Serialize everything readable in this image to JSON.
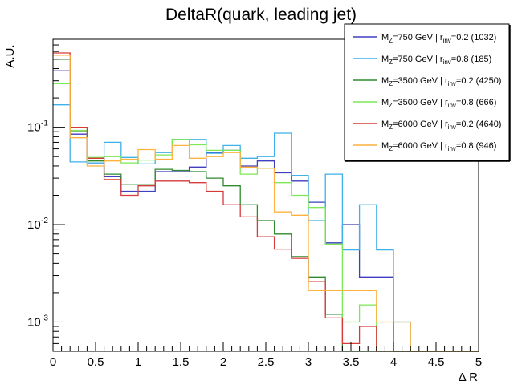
{
  "chart_data": {
    "type": "line",
    "title": "DeltaR(quark, leading jet)",
    "xlabel": "Δ R",
    "ylabel": "A.U.",
    "xlim": [
      0,
      5
    ],
    "ylim": [
      0.0005,
      0.8
    ],
    "yscale": "log",
    "grid": false,
    "legend_position": "top-right",
    "x_ticks": [
      "0",
      "0.5",
      "1",
      "1.5",
      "2",
      "2.5",
      "3",
      "3.5",
      "4",
      "4.5",
      "5"
    ],
    "y_ticks": [
      {
        "base": "10",
        "exp": "-1"
      },
      {
        "base": "10",
        "exp": "-2"
      },
      {
        "base": "10",
        "exp": "-3"
      }
    ],
    "bin_edges": [
      0,
      0.2,
      0.4,
      0.6,
      0.8,
      1.0,
      1.2,
      1.4,
      1.6,
      1.8,
      2.0,
      2.2,
      2.4,
      2.6,
      2.8,
      3.0,
      3.2,
      3.4,
      3.6,
      3.8,
      4.0,
      4.2,
      4.4,
      4.6,
      4.8,
      5.0
    ],
    "series": [
      {
        "label": {
          "pre": "M",
          "sub1": "Z",
          "mid": "=750 GeV | r",
          "sub2": "inv",
          "post": "=0.2 (1032)"
        },
        "color": "#3f3fbf",
        "values": [
          0.38,
          0.085,
          0.042,
          0.031,
          0.022,
          0.022,
          0.035,
          0.035,
          0.039,
          0.055,
          0.058,
          0.04,
          0.045,
          0.034,
          0.028,
          0.017,
          0.0065,
          0.01,
          0.0029,
          0.0029,
          0,
          0,
          0,
          0,
          0
        ]
      },
      {
        "label": {
          "pre": "M",
          "sub1": "Z",
          "mid": "=750 GeV | r",
          "sub2": "inv",
          "post": "=0.8 (185)"
        },
        "color": "#3fb0e8",
        "values": [
          0.17,
          0.044,
          0.043,
          0.07,
          0.049,
          0.042,
          0.055,
          0.075,
          0.075,
          0.054,
          0.065,
          0.048,
          0.05,
          0.087,
          0.032,
          0.011,
          0.033,
          0.0055,
          0.016,
          0.0055,
          0.001,
          0,
          0,
          0,
          0
        ]
      },
      {
        "label": {
          "pre": "M",
          "sub1": "Z",
          "mid": "=3500 GeV | r",
          "sub2": "inv",
          "post": "=0.2 (4250)"
        },
        "color": "#2d8a2d",
        "values": [
          0.5,
          0.09,
          0.045,
          0.033,
          0.026,
          0.026,
          0.037,
          0.036,
          0.035,
          0.03,
          0.025,
          0.016,
          0.011,
          0.008,
          0.0047,
          0.0029,
          0.0012,
          0.0005,
          0.0005,
          0,
          0,
          0,
          0,
          0,
          0
        ]
      },
      {
        "label": {
          "pre": "M",
          "sub1": "Z",
          "mid": "=3500 GeV | r",
          "sub2": "inv",
          "post": "=0.8 (666)"
        },
        "color": "#7be855",
        "values": [
          0.28,
          0.093,
          0.049,
          0.05,
          0.043,
          0.046,
          0.052,
          0.075,
          0.066,
          0.058,
          0.058,
          0.033,
          0.038,
          0.027,
          0.02,
          0.015,
          0.0063,
          0.001,
          0.0015,
          0.0005,
          0,
          0,
          0,
          0,
          0
        ]
      },
      {
        "label": {
          "pre": "M",
          "sub1": "Z",
          "mid": "=6000 GeV | r",
          "sub2": "inv",
          "post": "=0.2 (4640)"
        },
        "color": "#d63a3a",
        "values": [
          0.58,
          0.1,
          0.048,
          0.029,
          0.02,
          0.025,
          0.028,
          0.028,
          0.027,
          0.022,
          0.016,
          0.012,
          0.0075,
          0.0056,
          0.0045,
          0.0026,
          0.0011,
          0.0006,
          0.0009,
          0,
          0,
          0,
          0,
          0,
          0
        ]
      },
      {
        "label": {
          "pre": "M",
          "sub1": "Z",
          "mid": "=6000 GeV | r",
          "sub2": "inv",
          "post": "=0.8 (946)"
        },
        "color": "#ffb23f",
        "values": [
          0.55,
          0.078,
          0.04,
          0.045,
          0.047,
          0.059,
          0.047,
          0.065,
          0.048,
          0.05,
          0.055,
          0.039,
          0.038,
          0.0135,
          0.0125,
          0.0021,
          0.0021,
          0.0021,
          0.0021,
          0.001,
          0.001,
          0,
          0,
          0,
          0
        ]
      }
    ]
  }
}
